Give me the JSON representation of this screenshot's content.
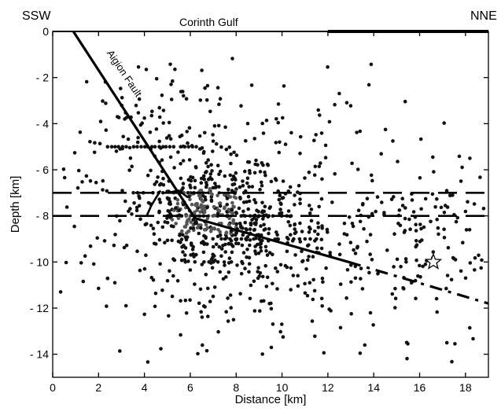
{
  "chart_data": {
    "type": "scatter",
    "title": "",
    "xlabel": "Distance [km]",
    "ylabel": "Depth [km]",
    "xlim": [
      0,
      19
    ],
    "ylim": [
      -15,
      0
    ],
    "xticks": [
      0,
      2,
      4,
      6,
      8,
      10,
      12,
      14,
      16,
      18
    ],
    "yticks": [
      0,
      -2,
      -4,
      -6,
      -8,
      -10,
      -12,
      -14
    ],
    "grid": false,
    "annotations": {
      "left_label": "SSW",
      "right_label": "NNE",
      "top_label": "Corinth Gulf",
      "fault_label": "Aigion Fault"
    },
    "surface_line": {
      "thin_x": [
        0,
        12
      ],
      "thick_x": [
        12,
        19
      ],
      "y": 0
    },
    "horizontal_dashed_lines": [
      -7,
      -8
    ],
    "fault": {
      "solid": {
        "x": [
          0.9,
          6.2,
          12.9
        ],
        "y": [
          0,
          -8.1,
          -10.0
        ]
      },
      "dashed": {
        "x": [
          12.9,
          19
        ],
        "y": [
          -10.0,
          -11.8
        ]
      }
    },
    "step_marks": [
      {
        "x": [
          4.7,
          4.3,
          4.1
        ],
        "y": [
          -6.9,
          -7.55,
          -8.0
        ]
      },
      {
        "x": [
          5.0,
          5.5,
          5.9
        ],
        "y": [
          -7.0,
          -6.9,
          -7.2
        ]
      }
    ],
    "star": {
      "x": 16.6,
      "y": -10.0
    },
    "events": {
      "clusters": [
        {
          "name": "core",
          "cx": 6.6,
          "cy": -7.8,
          "sx": 1.3,
          "sy": 1.0,
          "n": 260
        },
        {
          "name": "mid",
          "cx": 8.5,
          "cy": -8.4,
          "sx": 2.6,
          "sy": 2.0,
          "n": 340
        },
        {
          "name": "broad",
          "cx": 9.5,
          "cy": -8.0,
          "sx": 5.0,
          "sy": 3.2,
          "n": 300
        },
        {
          "name": "shallow",
          "cx": 4.5,
          "cy": -4.2,
          "sx": 1.8,
          "sy": 1.6,
          "n": 70
        },
        {
          "name": "east",
          "cx": 16.5,
          "cy": -9.2,
          "sx": 1.8,
          "sy": 1.6,
          "n": 110
        }
      ],
      "rows": [
        {
          "y": -5,
          "x_from": 2.4,
          "x_to": 6.4,
          "step": 0.16
        },
        {
          "y": -8,
          "x_from": 5.0,
          "x_to": 10.5,
          "step": 0.2
        },
        {
          "y": -9,
          "x_from": 7.5,
          "x_to": 11.5,
          "step": 0.25
        },
        {
          "y": -10,
          "x_from": 5.8,
          "x_to": 8.0,
          "step": 0.2
        },
        {
          "y": -7,
          "x_from": 3.5,
          "x_to": 8.5,
          "step": 0.22
        }
      ],
      "note": "approximately 1100 individual hypocentres, spread 0-19 km distance, 1-15 km depth"
    }
  }
}
